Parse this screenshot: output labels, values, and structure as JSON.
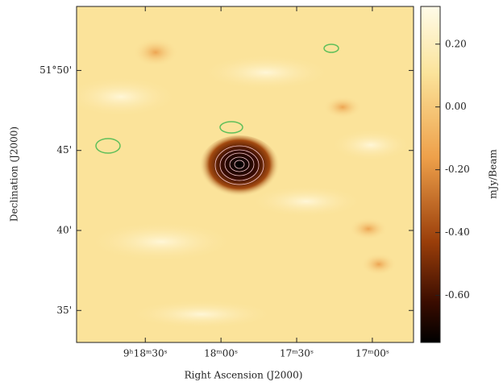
{
  "chart_data": {
    "type": "image",
    "xlabel": "Right Ascension (J2000)",
    "ylabel": "Declination (J2000)",
    "colorbar_label": "mJy/Beam",
    "xlim": [
      9.3159,
      9.2788
    ],
    "xticks": [
      {
        "value": 9.308333,
        "label": "9ʰ18ᵐ30ˢ"
      },
      {
        "value": 9.3,
        "label": "18ᵐ00ˢ"
      },
      {
        "value": 9.291667,
        "label": "17ᵐ30ˢ"
      },
      {
        "value": 9.283333,
        "label": "17ᵐ00ˢ"
      }
    ],
    "ylim": [
      51.55,
      51.9
    ],
    "yticks": [
      {
        "value": 51.833333,
        "label": "51°50'"
      },
      {
        "value": 51.75,
        "label": "45'"
      },
      {
        "value": 51.666667,
        "label": "40'"
      },
      {
        "value": 51.583333,
        "label": "35'"
      }
    ],
    "clim": [
      -0.75,
      0.32
    ],
    "cticks": [
      {
        "value": 0.2,
        "label": "0.20"
      },
      {
        "value": 0,
        "label": "0.00"
      },
      {
        "value": -0.2,
        "label": "-0.20"
      },
      {
        "value": -0.4,
        "label": "-0.40"
      },
      {
        "value": -0.6,
        "label": "-0.60"
      }
    ]
  }
}
